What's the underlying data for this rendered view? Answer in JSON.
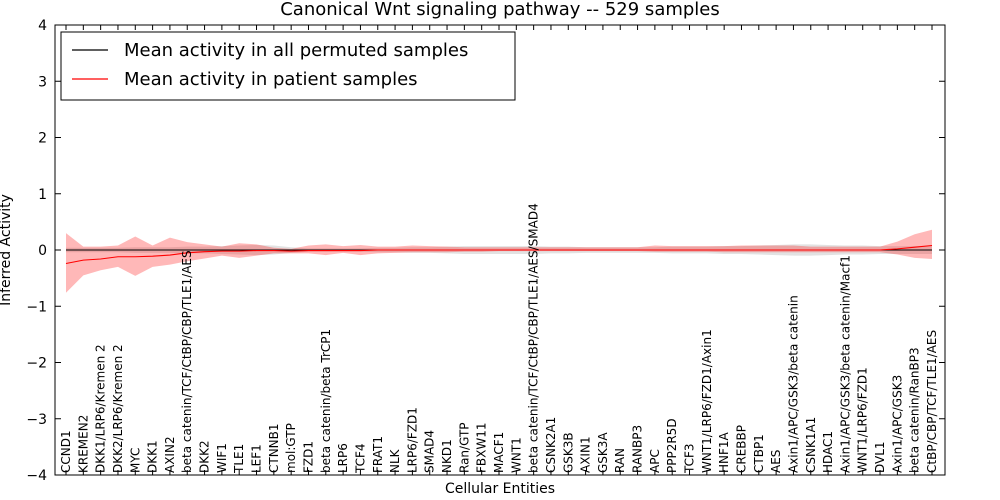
{
  "chart_data": {
    "type": "line",
    "title": "Canonical Wnt signaling pathway -- 529 samples",
    "xlabel": "Cellular Entities",
    "ylabel": "Inferred Activity",
    "ylim": [
      -4,
      4
    ],
    "yticks": [
      -4,
      -3,
      -2,
      -1,
      0,
      1,
      2,
      3,
      4
    ],
    "legend_position": "top-left",
    "categories": [
      "CCND1",
      "KREMEN2",
      "DKK1/LRP6/Kremen 2",
      "DKK2/LRP6/Kremen 2",
      "MYC",
      "DKK1",
      "AXIN2",
      "beta catenin/TCF/CtBP/CBP/TLE1/AES",
      "DKK2",
      "WIF1",
      "TLE1",
      "LEF1",
      "CTNNB1",
      "mol:GTP",
      "FZD1",
      "beta catenin/beta TrCP1",
      "LRP6",
      "TCF4",
      "FRAT1",
      "NLK",
      "LRP6/FZD1",
      "SMAD4",
      "NKD1",
      "Ran/GTP",
      "FBXW11",
      "MACF1",
      "WNT1",
      "beta catenin/TCF/CtBP/CBP/TLE1/AES/SMAD4",
      "CSNK2A1",
      "GSK3B",
      "AXIN1",
      "GSK3A",
      "RAN",
      "RANBP3",
      "APC",
      "PPP2R5D",
      "TCF3",
      "WNT1/LRP6/FZD1/Axin1",
      "HNF1A",
      "CREBBP",
      "CTBP1",
      "AES",
      "Axin1/APC/GSK3/beta catenin",
      "CSNK1A1",
      "HDAC1",
      "Axin1/APC/GSK3/beta catenin/Macf1",
      "WNT1/LRP6/FZD1",
      "DVL1",
      "Axin1/APC/GSK3",
      "beta catenin/RanBP3",
      "CtBP/CBP/TCF/TLE1/AES"
    ],
    "series": [
      {
        "name": "Mean activity in all permuted samples",
        "color": "#000000",
        "values": [
          0,
          0,
          0,
          0,
          0,
          0,
          0,
          0,
          0,
          0,
          0,
          0,
          0,
          0,
          0,
          0,
          0,
          0,
          0,
          0,
          0,
          0,
          0,
          0,
          0,
          0,
          0,
          0,
          0,
          0,
          0,
          0,
          0,
          0,
          0,
          0,
          0,
          0,
          0,
          0,
          0,
          0,
          0,
          0,
          0,
          0,
          0,
          0,
          0,
          0,
          0
        ],
        "lower": [
          -0.04,
          -0.04,
          -0.04,
          -0.04,
          -0.05,
          -0.05,
          -0.05,
          -0.06,
          -0.06,
          -0.07,
          -0.08,
          -0.09,
          -0.08,
          -0.05,
          -0.03,
          -0.03,
          -0.03,
          -0.03,
          -0.04,
          -0.04,
          -0.05,
          -0.05,
          -0.06,
          -0.07,
          -0.07,
          -0.07,
          -0.07,
          -0.07,
          -0.06,
          -0.06,
          -0.05,
          -0.05,
          -0.05,
          -0.05,
          -0.05,
          -0.06,
          -0.06,
          -0.06,
          -0.07,
          -0.07,
          -0.08,
          -0.09,
          -0.1,
          -0.1,
          -0.09,
          -0.08,
          -0.08,
          -0.07,
          -0.07,
          -0.07,
          -0.07
        ],
        "upper": [
          0.04,
          0.04,
          0.04,
          0.04,
          0.05,
          0.05,
          0.05,
          0.06,
          0.06,
          0.07,
          0.08,
          0.09,
          0.08,
          0.05,
          0.03,
          0.03,
          0.03,
          0.03,
          0.04,
          0.04,
          0.05,
          0.05,
          0.06,
          0.07,
          0.07,
          0.07,
          0.07,
          0.07,
          0.06,
          0.06,
          0.05,
          0.05,
          0.05,
          0.05,
          0.05,
          0.06,
          0.06,
          0.06,
          0.07,
          0.07,
          0.08,
          0.09,
          0.1,
          0.1,
          0.09,
          0.08,
          0.08,
          0.07,
          0.07,
          0.07,
          0.07
        ]
      },
      {
        "name": "Mean activity in patient samples",
        "color": "#ff0000",
        "values": [
          -0.24,
          -0.18,
          -0.16,
          -0.12,
          -0.12,
          -0.11,
          -0.09,
          -0.05,
          -0.03,
          -0.02,
          -0.02,
          -0.01,
          -0.01,
          -0.02,
          -0.01,
          -0.01,
          -0.01,
          -0.01,
          0,
          0,
          0,
          0,
          0,
          0,
          0,
          0,
          0,
          0,
          0,
          0,
          0,
          0,
          0,
          0,
          0,
          0,
          0,
          0,
          0,
          0,
          0,
          0,
          0,
          0,
          0,
          0,
          0,
          0,
          0.02,
          0.05,
          0.08
        ],
        "lower": [
          -0.76,
          -0.45,
          -0.36,
          -0.3,
          -0.46,
          -0.3,
          -0.26,
          -0.2,
          -0.15,
          -0.1,
          -0.14,
          -0.1,
          -0.06,
          -0.06,
          -0.06,
          -0.09,
          -0.05,
          -0.09,
          -0.06,
          -0.05,
          -0.04,
          -0.04,
          -0.04,
          -0.03,
          -0.03,
          -0.02,
          -0.02,
          -0.02,
          -0.02,
          -0.02,
          -0.02,
          -0.02,
          -0.02,
          -0.02,
          -0.03,
          -0.03,
          -0.03,
          -0.03,
          -0.04,
          -0.04,
          -0.04,
          -0.04,
          -0.04,
          -0.04,
          -0.04,
          -0.04,
          -0.04,
          -0.04,
          -0.08,
          -0.14,
          -0.16
        ],
        "upper": [
          0.3,
          0.06,
          0.06,
          0.08,
          0.24,
          0.08,
          0.22,
          0.14,
          0.1,
          0.06,
          0.12,
          0.1,
          0.04,
          0.02,
          0.08,
          0.1,
          0.07,
          0.09,
          0.06,
          0.06,
          0.08,
          0.07,
          0.06,
          0.05,
          0.05,
          0.05,
          0.05,
          0.05,
          0.05,
          0.05,
          0.05,
          0.05,
          0.05,
          0.05,
          0.08,
          0.07,
          0.07,
          0.07,
          0.07,
          0.08,
          0.08,
          0.08,
          0.08,
          0.06,
          0.06,
          0.06,
          0.06,
          0.06,
          0.15,
          0.28,
          0.36
        ]
      }
    ]
  }
}
